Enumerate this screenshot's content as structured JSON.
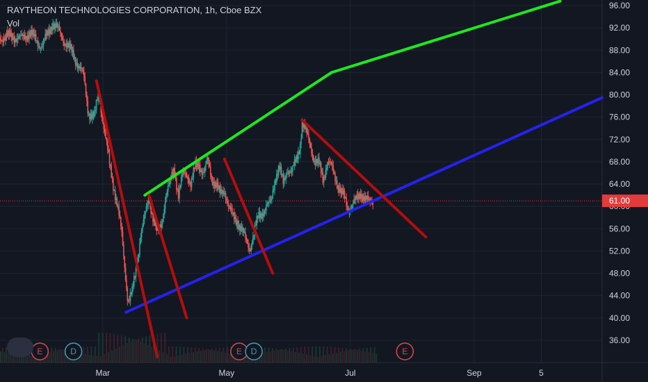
{
  "chart_data": {
    "type": "line",
    "title": "RAYTHEON TECHNOLOGIES CORPORATION, 1h, Cboe BZX",
    "volume_label": "Vol",
    "colors": {
      "background": "#131722",
      "grid": "#1f2433",
      "axis_text": "#d1d4dc",
      "up_candle": "#26a69a",
      "down_candle": "#ef5350",
      "current_price": "#e23b3b",
      "channel_top": "#1ee81e",
      "channel_bottom": "#2323f0",
      "down_trend": "#b50d0d",
      "earnings_marker": "#e04646",
      "dividend_marker": "#3aa0b8"
    },
    "y_axis": {
      "ticks": [
        "96.00",
        "92.00",
        "88.00",
        "84.00",
        "80.00",
        "76.00",
        "72.00",
        "68.00",
        "64.00",
        "60.00",
        "56.00",
        "52.00",
        "48.00",
        "44.00",
        "40.00",
        "36.00"
      ],
      "ylim": [
        32,
        97
      ],
      "current_price": "61.00"
    },
    "x_axis": {
      "tick_labels": [
        "Mar",
        "May",
        "Jul",
        "Sep",
        "5"
      ],
      "tick_positions_days": [
        29,
        88,
        147,
        206,
        238
      ],
      "xlim_days": [
        -20,
        267
      ]
    },
    "series": [
      {
        "values": [
          [
            -20,
            90.3
          ],
          [
            -14,
            90.5
          ],
          [
            -10,
            90
          ],
          [
            -6,
            91.2
          ],
          [
            -2,
            89.4
          ],
          [
            0,
            88.8
          ],
          [
            3,
            91
          ],
          [
            5,
            93
          ],
          [
            7,
            92
          ],
          [
            10,
            90
          ],
          [
            12,
            89
          ],
          [
            15,
            87
          ],
          [
            18,
            85
          ],
          [
            20,
            83
          ],
          [
            22,
            77
          ],
          [
            25,
            76
          ],
          [
            27,
            80.5
          ],
          [
            30,
            73
          ],
          [
            32,
            68
          ],
          [
            34,
            64
          ],
          [
            36,
            60
          ],
          [
            38,
            55
          ],
          [
            40,
            47
          ],
          [
            41,
            43
          ],
          [
            43,
            44.5
          ],
          [
            45,
            49
          ],
          [
            47,
            55
          ],
          [
            49,
            58
          ],
          [
            51,
            61.5
          ],
          [
            53,
            58
          ],
          [
            55,
            55
          ],
          [
            57,
            57
          ],
          [
            59,
            62
          ],
          [
            61,
            64
          ],
          [
            63,
            67
          ],
          [
            65,
            62
          ],
          [
            67,
            65.5
          ],
          [
            69,
            66
          ],
          [
            71,
            64
          ],
          [
            73,
            67
          ],
          [
            75,
            67.5
          ],
          [
            77,
            66
          ],
          [
            79,
            68
          ],
          [
            81,
            65
          ],
          [
            83,
            64
          ],
          [
            85,
            62
          ],
          [
            87,
            63
          ],
          [
            89,
            60
          ],
          [
            91,
            58
          ],
          [
            93,
            57.5
          ],
          [
            95,
            56
          ],
          [
            97,
            54
          ],
          [
            99,
            52.5
          ],
          [
            101,
            55
          ],
          [
            103,
            58
          ],
          [
            105,
            59
          ],
          [
            107,
            60
          ],
          [
            109,
            60.5
          ],
          [
            111,
            65
          ],
          [
            113,
            67
          ],
          [
            115,
            64
          ],
          [
            117,
            67
          ],
          [
            119,
            66
          ],
          [
            121,
            68
          ],
          [
            123,
            71
          ],
          [
            124,
            75
          ],
          [
            126,
            73
          ],
          [
            128,
            71
          ],
          [
            130,
            68
          ],
          [
            132,
            67.5
          ],
          [
            134,
            65
          ],
          [
            136,
            68
          ],
          [
            138,
            67
          ],
          [
            140,
            65
          ],
          [
            142,
            63
          ],
          [
            144,
            61.5
          ],
          [
            146,
            59.5
          ],
          [
            148,
            60.5
          ],
          [
            150,
            61
          ],
          [
            152,
            62.5
          ],
          [
            154,
            61.5
          ],
          [
            156,
            60.5
          ],
          [
            158,
            61
          ]
        ]
      }
    ],
    "trendlines": [
      {
        "role": "channel_top",
        "points": [
          [
            49,
            62
          ],
          [
            138,
            84
          ]
        ]
      },
      {
        "role": "channel_top",
        "points": [
          [
            138,
            84
          ],
          [
            247,
            96.8
          ]
        ]
      },
      {
        "role": "channel_bottom",
        "points": [
          [
            40,
            41
          ],
          [
            267,
            79.5
          ]
        ]
      },
      {
        "role": "down_trend",
        "points": [
          [
            26,
            82.5
          ],
          [
            55,
            33
          ]
        ]
      },
      {
        "role": "down_trend",
        "points": [
          [
            51,
            62
          ],
          [
            69,
            40
          ]
        ]
      },
      {
        "role": "down_trend",
        "points": [
          [
            87,
            68.5
          ],
          [
            110,
            48
          ]
        ]
      },
      {
        "role": "down_trend",
        "points": [
          [
            124,
            75.5
          ],
          [
            183,
            54.5
          ]
        ]
      }
    ],
    "markers": [
      {
        "label": "E",
        "kind": "earnings",
        "day": -1
      },
      {
        "label": "D",
        "kind": "dividend",
        "day": 15
      },
      {
        "label": "E",
        "kind": "earnings",
        "day": 94
      },
      {
        "label": "D",
        "kind": "dividend",
        "day": 101
      },
      {
        "label": "E",
        "kind": "earnings",
        "day": 173
      }
    ]
  }
}
